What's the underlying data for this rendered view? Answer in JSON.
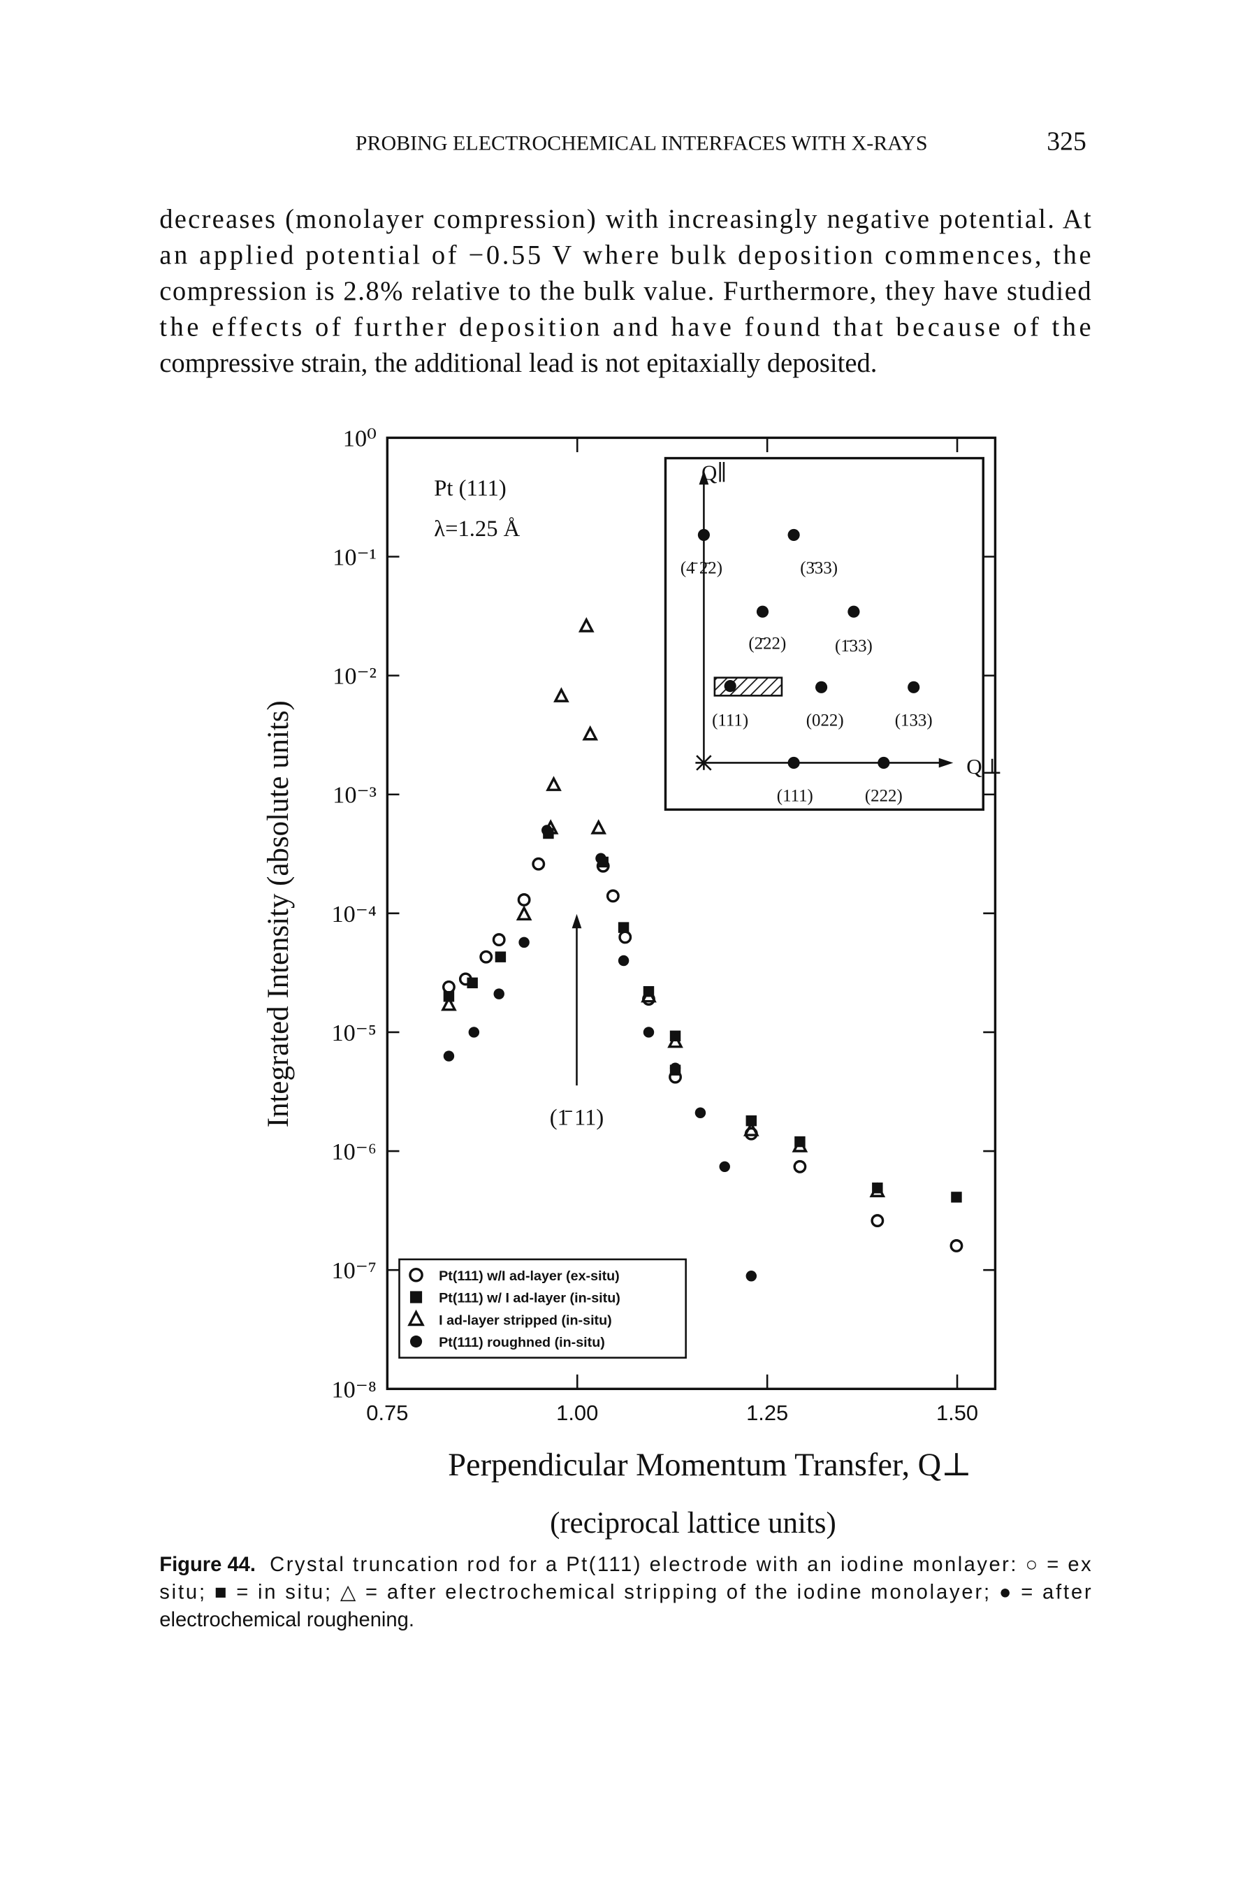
{
  "header": {
    "running_title": "PROBING ELECTROCHEMICAL INTERFACES WITH X-RAYS",
    "page_number": "325"
  },
  "body_text": [
    "decreases (monolayer compression) with increasingly negative potential. At",
    "an applied potential of −0.55 V where bulk deposition commences, the",
    "compression is 2.8% relative to the bulk value. Furthermore, they have studied",
    "the effects of further deposition and have found that because of the",
    "compressive strain, the additional lead is not epitaxially deposited."
  ],
  "chart_data": {
    "type": "scatter",
    "ylabel": "Integrated Intensity (absolute units)",
    "xlabel": "Perpendicular Momentum Transfer, Q⊥",
    "xlabel_sub": "(reciprocal lattice units)",
    "annotations": [
      "Pt (111)",
      "λ=1.25 Å"
    ],
    "peak_label": "(1̄ 11)",
    "log_y": true,
    "legend": "bottom-left",
    "xlim": [
      0.75,
      1.55
    ],
    "xticks": [
      {
        "value": 0.75,
        "label": "0.75"
      },
      {
        "value": 1,
        "label": "1.00"
      },
      {
        "value": 1.25,
        "label": "1.25"
      },
      {
        "value": 1.5,
        "label": "1.50"
      }
    ],
    "ylim": [
      1e-08,
      1
    ],
    "yticks": [
      {
        "value": 1,
        "label": "10⁰"
      },
      {
        "value": 0.1,
        "label": "10⁻¹"
      },
      {
        "value": 0.01,
        "label": "10⁻²"
      },
      {
        "value": 0.001,
        "label": "10⁻³"
      },
      {
        "value": 0.0001,
        "label": "10⁻⁴"
      },
      {
        "value": 1e-05,
        "label": "10⁻⁵"
      },
      {
        "value": 1e-06,
        "label": "10⁻⁶"
      },
      {
        "value": 1e-07,
        "label": "10⁻⁷"
      },
      {
        "value": 1e-08,
        "label": "10⁻⁸"
      }
    ],
    "series": [
      {
        "name": "Pt(111) w/I ad-layer (ex-situ)",
        "marker": "circle-open",
        "color": "#111",
        "x": [
          0.831,
          0.853,
          0.88,
          0.897,
          0.93,
          0.949,
          1.034,
          1.047,
          1.063,
          1.094,
          1.129,
          1.229,
          1.293,
          1.395,
          1.499
        ],
        "values": [
          2.4e-05,
          2.8e-05,
          4.3e-05,
          6e-05,
          0.00013,
          0.00026,
          0.00025,
          0.00014,
          6.3e-05,
          1.9e-05,
          4.2e-06,
          1.4e-06,
          7.4e-07,
          2.6e-07,
          1.6e-07
        ]
      },
      {
        "name": "Pt(111) w/ I ad-layer (in-situ)",
        "marker": "square",
        "color": "#111",
        "x": [
          0.831,
          0.862,
          0.899,
          0.962,
          1.034,
          1.061,
          1.094,
          1.129,
          1.129,
          1.229,
          1.293,
          1.395,
          1.499
        ],
        "values": [
          2e-05,
          2.6e-05,
          4.3e-05,
          0.00047,
          0.00027,
          7.6e-05,
          2.2e-05,
          9.3e-06,
          4.8e-06,
          1.8e-06,
          1.2e-06,
          4.9e-07,
          4.1e-07
        ]
      },
      {
        "name": "I ad-layer stripped (in-situ)",
        "marker": "triangle-open",
        "color": "#111",
        "x": [
          0.831,
          0.93,
          0.965,
          0.969,
          0.979,
          1.012,
          1.017,
          1.028,
          1.094,
          1.129,
          1.229,
          1.293,
          1.395
        ],
        "values": [
          1.7e-05,
          9.8e-05,
          0.00052,
          0.0012,
          0.0067,
          0.026,
          0.0032,
          0.00052,
          2e-05,
          8.3e-06,
          1.5e-06,
          1.1e-06,
          4.6e-07
        ]
      },
      {
        "name": "Pt(111) roughned (in-situ)",
        "marker": "circle",
        "color": "#111",
        "x": [
          0.831,
          0.864,
          0.897,
          0.93,
          0.96,
          1.031,
          1.061,
          1.094,
          1.129,
          1.162,
          1.194,
          1.229
        ],
        "values": [
          6.3e-06,
          1e-05,
          2.1e-05,
          5.7e-05,
          0.0005,
          0.00029,
          4e-05,
          1e-05,
          5e-06,
          2.1e-06,
          7.4e-07,
          8.9e-08
        ]
      }
    ]
  },
  "inset": {
    "axis_labels": [
      "Q∥",
      "Q⊥"
    ],
    "labels": [
      "(4̄ 2̄2)",
      "(3̄33)",
      "(2̄22)",
      "(1̄33)",
      "(111)",
      "(022)",
      "(133)",
      "(111)",
      "(222)"
    ]
  },
  "caption": {
    "label": "Figure 44.",
    "lines": [
      "Crystal truncation rod for a Pt(111) electrode with an iodine monlayer: ○ = ex",
      "situ; ■ = in situ; △ = after electrochemical stripping of the iodine monolayer; ● = after",
      "electrochemical roughening."
    ]
  }
}
